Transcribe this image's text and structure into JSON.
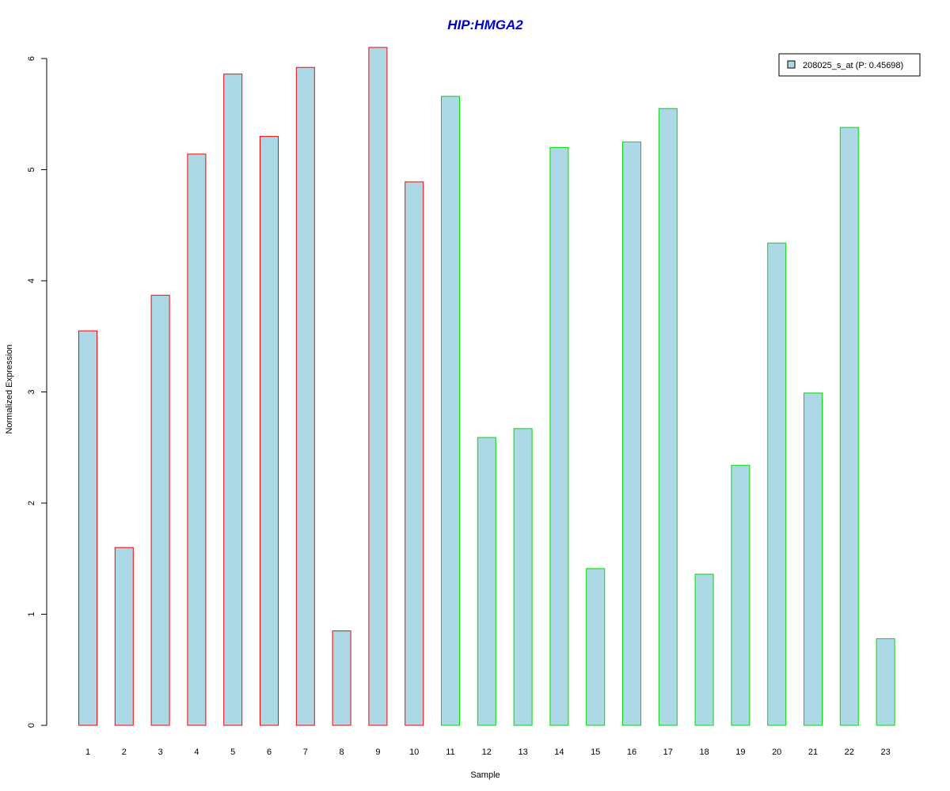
{
  "chart_data": {
    "type": "bar",
    "title": "HIP:HMGA2",
    "xlabel": "Sample",
    "ylabel": "Normalized Expression",
    "categories": [
      "1",
      "2",
      "3",
      "4",
      "5",
      "6",
      "7",
      "8",
      "9",
      "10",
      "11",
      "12",
      "13",
      "14",
      "15",
      "16",
      "17",
      "18",
      "19",
      "20",
      "21",
      "22",
      "23"
    ],
    "series": [
      {
        "name": "208025_s_at (P: 0.45698)",
        "values": [
          3.55,
          1.6,
          3.87,
          5.14,
          5.86,
          5.3,
          5.92,
          0.85,
          6.1,
          4.89,
          5.66,
          2.59,
          2.67,
          5.2,
          1.41,
          5.25,
          5.55,
          1.36,
          2.34,
          4.34,
          2.99,
          5.38,
          0.78
        ]
      }
    ],
    "groups": [
      1,
      1,
      1,
      1,
      1,
      1,
      1,
      1,
      1,
      1,
      2,
      2,
      2,
      2,
      2,
      2,
      2,
      2,
      2,
      2,
      2,
      2,
      2
    ],
    "yticks": [
      0,
      1,
      2,
      3,
      4,
      5,
      6
    ],
    "ylim": [
      0,
      6.1
    ],
    "grid": false,
    "legend_position": "top-right",
    "colors": {
      "title": "#0000cc",
      "bar_fill": "#add8e6",
      "group1_border": "#ff0000",
      "group2_border": "#00dd00",
      "axis": "#000000"
    }
  }
}
